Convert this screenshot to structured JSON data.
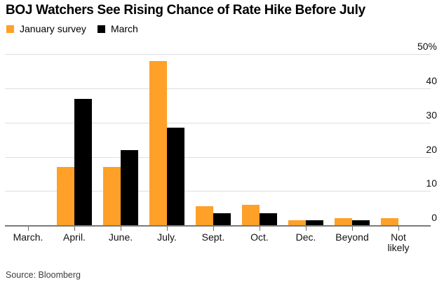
{
  "title": "BOJ Watchers See Rising Chance of Rate Hike Before July",
  "legend": {
    "items": [
      {
        "label": "January survey",
        "color": "#FFA028"
      },
      {
        "label": "March",
        "color": "#000000"
      }
    ]
  },
  "source": "Source: Bloomberg",
  "colors": {
    "accent_orange": "#FFA028",
    "bar_black": "#000000",
    "gridline": "#DEDEDE",
    "axis_line": "#7A7A7A",
    "tick_mark": "#6E6E6E",
    "label_text": "#111111",
    "source_text": "#3D3D3D",
    "background": "#FFFFFF"
  },
  "chart_data": {
    "type": "bar",
    "title": "BOJ Watchers See Rising Chance of Rate Hike Before July",
    "categories": [
      "March.",
      "April.",
      "June.",
      "July.",
      "Sept.",
      "Oct.",
      "Dec.",
      "Beyond",
      "Not\nlikely"
    ],
    "series": [
      {
        "name": "January survey",
        "color": "#FFA028",
        "values": [
          0,
          17,
          17,
          48,
          5.5,
          6,
          1.5,
          2,
          2
        ]
      },
      {
        "name": "March",
        "color": "#000000",
        "values": [
          0,
          37,
          22,
          28.5,
          3.5,
          3.5,
          1.5,
          1.5,
          0
        ]
      }
    ],
    "xlabel": "",
    "ylabel": "%",
    "ylim": [
      0,
      50
    ],
    "y_ticks": [
      0,
      10,
      20,
      30,
      40,
      50
    ],
    "y_tick_labels": [
      "0",
      "10",
      "20",
      "30",
      "40",
      "50%"
    ],
    "grid": "horizontal",
    "legend_position": "top-left",
    "value_axis_side": "right"
  }
}
